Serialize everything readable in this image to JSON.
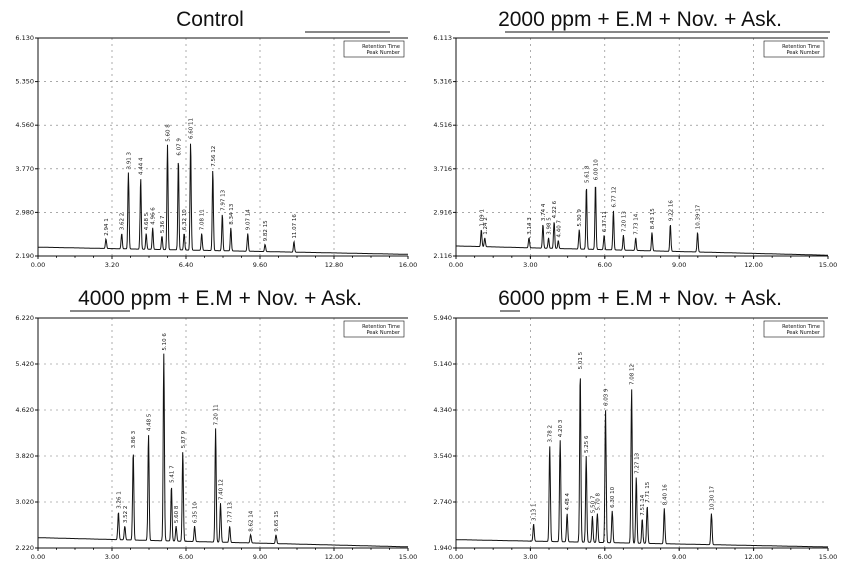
{
  "chart_data": [
    {
      "type": "line",
      "title": "Control",
      "legend": {
        "placement": "top-right",
        "lines": [
          "Retention Time",
          "Peak Number"
        ]
      },
      "xlim": [
        0,
        16
      ],
      "ylim": [
        2.19,
        6.13
      ],
      "x_ticks": [
        "0.00",
        "3.20",
        "6.40",
        "9.60",
        "12.80",
        "16.00"
      ],
      "y_ticks": [
        "2.190",
        "2.980",
        "3.770",
        "4.560",
        "5.350",
        "6.130"
      ],
      "baseline": {
        "start": 2.35,
        "end": 2.22
      },
      "peaks": [
        {
          "label": "2.94 1",
          "rt": 2.94,
          "height": 2.5
        },
        {
          "label": "3.62 2",
          "rt": 3.62,
          "height": 2.6
        },
        {
          "label": "3.91 3",
          "rt": 3.91,
          "height": 3.7
        },
        {
          "label": "4.44 4",
          "rt": 4.44,
          "height": 3.6
        },
        {
          "label": "4.68 5",
          "rt": 4.68,
          "height": 2.6
        },
        {
          "label": "4.96 6",
          "rt": 4.96,
          "height": 2.7
        },
        {
          "label": "5.36 7",
          "rt": 5.36,
          "height": 2.55
        },
        {
          "label": "5.60 8",
          "rt": 5.6,
          "height": 4.2
        },
        {
          "label": "6.07 9",
          "rt": 6.07,
          "height": 3.95
        },
        {
          "label": "6.32 10",
          "rt": 6.32,
          "height": 2.6
        },
        {
          "label": "6.60 11",
          "rt": 6.6,
          "height": 4.25
        },
        {
          "label": "7.08 11",
          "rt": 7.08,
          "height": 2.6
        },
        {
          "label": "7.56 12",
          "rt": 7.56,
          "height": 3.75
        },
        {
          "label": "7.97 13",
          "rt": 7.97,
          "height": 2.95
        },
        {
          "label": "8.34 13",
          "rt": 8.34,
          "height": 2.7
        },
        {
          "label": "9.07 14",
          "rt": 9.07,
          "height": 2.6
        },
        {
          "label": "9.82 15",
          "rt": 9.82,
          "height": 2.4
        },
        {
          "label": "11.07 16",
          "rt": 11.07,
          "height": 2.45
        }
      ]
    },
    {
      "type": "line",
      "title": "2000 ppm + E.M + Nov. + Ask.",
      "legend": {
        "placement": "top-right",
        "lines": [
          "Retention Time",
          "Peak Number"
        ]
      },
      "xlim": [
        0,
        16
      ],
      "ylim": [
        2.116,
        6.113
      ],
      "x_ticks": [
        "0.00",
        "3.00",
        "6.00",
        "9.00",
        "12.00",
        "15.00"
      ],
      "y_ticks": [
        "2.116",
        "2.916",
        "3.716",
        "4.516",
        "5.316",
        "6.113"
      ],
      "baseline": {
        "start": 2.3,
        "end": 2.13
      },
      "peaks": [
        {
          "label": "1.09 1",
          "rt": 1.09,
          "height": 2.6
        },
        {
          "label": "1.24 2",
          "rt": 1.24,
          "height": 2.45
        },
        {
          "label": "3.14 3",
          "rt": 3.14,
          "height": 2.45
        },
        {
          "label": "3.74 4",
          "rt": 3.74,
          "height": 2.7
        },
        {
          "label": "3.98 5",
          "rt": 3.98,
          "height": 2.45
        },
        {
          "label": "4.22 6",
          "rt": 4.22,
          "height": 2.75
        },
        {
          "label": "4.40 7",
          "rt": 4.4,
          "height": 2.4
        },
        {
          "label": "5.61 8",
          "rt": 5.61,
          "height": 3.4
        },
        {
          "label": "5.30 9",
          "rt": 5.3,
          "height": 2.6
        },
        {
          "label": "6.00 10",
          "rt": 6.0,
          "height": 3.45
        },
        {
          "label": "6.37 11",
          "rt": 6.37,
          "height": 2.5
        },
        {
          "label": "6.77 12",
          "rt": 6.77,
          "height": 2.95
        },
        {
          "label": "7.20 13",
          "rt": 7.2,
          "height": 2.5
        },
        {
          "label": "7.73 14",
          "rt": 7.73,
          "height": 2.45
        },
        {
          "label": "8.43 15",
          "rt": 8.43,
          "height": 2.55
        },
        {
          "label": "9.22 16",
          "rt": 9.22,
          "height": 2.7
        },
        {
          "label": "10.39 17",
          "rt": 10.39,
          "height": 2.55
        }
      ]
    },
    {
      "type": "line",
      "title": "4000 ppm + E.M + Nov. + Ask.",
      "legend": {
        "placement": "top-right",
        "lines": [
          "Retention Time",
          "Peak Number"
        ]
      },
      "xlim": [
        0,
        15
      ],
      "ylim": [
        2.22,
        6.22
      ],
      "x_ticks": [
        "0.00",
        "3.00",
        "6.00",
        "9.00",
        "12.00",
        "15.00"
      ],
      "y_ticks": [
        "2.220",
        "3.020",
        "3.820",
        "4.620",
        "5.420",
        "6.220"
      ],
      "baseline": {
        "start": 2.4,
        "end": 2.24
      },
      "peaks": [
        {
          "label": "3.26 1",
          "rt": 3.26,
          "height": 2.85
        },
        {
          "label": "3.52 2",
          "rt": 3.52,
          "height": 2.6
        },
        {
          "label": "3.86 3",
          "rt": 3.86,
          "height": 3.9
        },
        {
          "label": "4.48 5",
          "rt": 4.48,
          "height": 4.2
        },
        {
          "label": "5.10 6",
          "rt": 5.1,
          "height": 5.6
        },
        {
          "label": "5.41 7",
          "rt": 5.41,
          "height": 3.3
        },
        {
          "label": "5.60 8",
          "rt": 5.6,
          "height": 2.6
        },
        {
          "label": "5.87 9",
          "rt": 5.87,
          "height": 3.9
        },
        {
          "label": "6.35 10",
          "rt": 6.35,
          "height": 2.6
        },
        {
          "label": "7.20 11",
          "rt": 7.2,
          "height": 4.3
        },
        {
          "label": "7.40 12",
          "rt": 7.4,
          "height": 3.0
        },
        {
          "label": "7.77 13",
          "rt": 7.77,
          "height": 2.6
        },
        {
          "label": "8.62 14",
          "rt": 8.62,
          "height": 2.45
        },
        {
          "label": "9.65 15",
          "rt": 9.65,
          "height": 2.45
        }
      ]
    },
    {
      "type": "line",
      "title": "6000 ppm + E.M + Nov. + Ask.",
      "legend": {
        "placement": "top-right",
        "lines": [
          "Retention Time",
          "Peak Number"
        ]
      },
      "xlim": [
        0,
        15
      ],
      "ylim": [
        1.94,
        6.34
      ],
      "x_ticks": [
        "0.00",
        "3.00",
        "6.00",
        "9.00",
        "12.00",
        "15.00"
      ],
      "y_ticks": [
        "1.940",
        "2.740",
        "3.540",
        "4.340",
        "5.140",
        "5.940"
      ],
      "baseline": {
        "start": 2.1,
        "end": 1.96
      },
      "peaks": [
        {
          "label": "3.13 1",
          "rt": 3.13,
          "height": 2.4
        },
        {
          "label": "3.78 2",
          "rt": 3.78,
          "height": 3.9
        },
        {
          "label": "4.20 3",
          "rt": 4.2,
          "height": 4.0
        },
        {
          "label": "4.48 4",
          "rt": 4.48,
          "height": 2.6
        },
        {
          "label": "5.01 5",
          "rt": 5.01,
          "height": 5.3
        },
        {
          "label": "5.25 6",
          "rt": 5.25,
          "height": 3.7
        },
        {
          "label": "5.50 7",
          "rt": 5.5,
          "height": 2.55
        },
        {
          "label": "5.70 8",
          "rt": 5.7,
          "height": 2.6
        },
        {
          "label": "6.03 9",
          "rt": 6.03,
          "height": 4.6
        },
        {
          "label": "6.30 10",
          "rt": 6.3,
          "height": 2.65
        },
        {
          "label": "7.08 12",
          "rt": 7.08,
          "height": 5.0
        },
        {
          "label": "7.27 13",
          "rt": 7.27,
          "height": 3.3
        },
        {
          "label": "7.51 14",
          "rt": 7.51,
          "height": 2.5
        },
        {
          "label": "7.71 15",
          "rt": 7.71,
          "height": 2.75
        },
        {
          "label": "8.40 16",
          "rt": 8.4,
          "height": 2.7
        },
        {
          "label": "10.30 17",
          "rt": 10.3,
          "height": 2.6
        }
      ]
    }
  ]
}
